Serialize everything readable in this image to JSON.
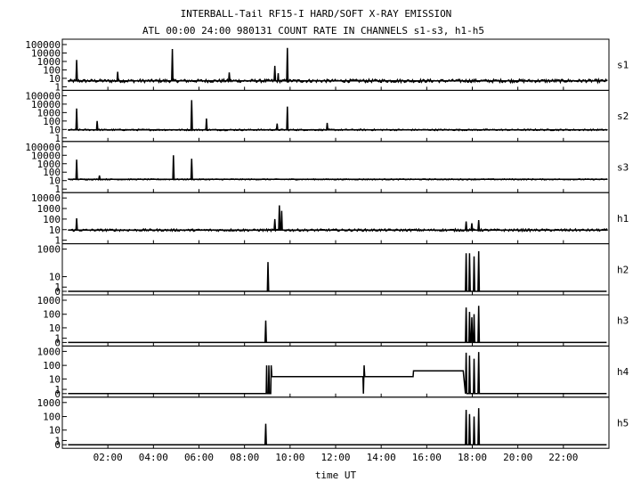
{
  "chart_data": {
    "type": "line",
    "title": "INTERBALL-Tail RF15-I HARD/SOFT X-RAY EMISSION",
    "subtitle": "ATL 00:00 24:00 980131  COUNT RATE IN CHANNELS s1-s3, h1-h5",
    "xlabel": "time UT",
    "x_unit": "hours",
    "xlim": [
      0,
      24
    ],
    "x_ticks": [
      {
        "value": 2,
        "label": "02:00"
      },
      {
        "value": 4,
        "label": "04:00"
      },
      {
        "value": 6,
        "label": "06:00"
      },
      {
        "value": 8,
        "label": "08:00"
      },
      {
        "value": 10,
        "label": "10:00"
      },
      {
        "value": 12,
        "label": "12:00"
      },
      {
        "value": 14,
        "label": "14:00"
      },
      {
        "value": 16,
        "label": "16:00"
      },
      {
        "value": 18,
        "label": "18:00"
      },
      {
        "value": 20,
        "label": "20:00"
      },
      {
        "value": 22,
        "label": "22:00"
      }
    ],
    "y_scale": "log",
    "grid": false,
    "panels": [
      {
        "name": "s1",
        "y_ticks": [
          {
            "value": 1,
            "label": "1"
          },
          {
            "value": 10,
            "label": "10"
          },
          {
            "value": 100,
            "label": "100"
          },
          {
            "value": 1000,
            "label": "1000"
          },
          {
            "value": 10000,
            "label": "10000"
          },
          {
            "value": 100000,
            "label": "100000"
          }
        ],
        "ylim": [
          1,
          100000
        ],
        "baseline": 5,
        "noise": 0.18,
        "series": [
          [
            0.25,
            5
          ],
          [
            0.6,
            5
          ],
          [
            0.63,
            1500
          ],
          [
            0.66,
            5
          ],
          [
            2.4,
            5
          ],
          [
            2.43,
            60
          ],
          [
            2.46,
            5
          ],
          [
            4.8,
            5
          ],
          [
            4.83,
            30000
          ],
          [
            4.86,
            5
          ],
          [
            7.3,
            5
          ],
          [
            7.33,
            50
          ],
          [
            7.36,
            5
          ],
          [
            9.3,
            5
          ],
          [
            9.33,
            300
          ],
          [
            9.36,
            5
          ],
          [
            9.45,
            5
          ],
          [
            9.48,
            40
          ],
          [
            9.5,
            5
          ],
          [
            9.85,
            5
          ],
          [
            9.88,
            40000
          ],
          [
            9.91,
            5
          ],
          [
            23.9,
            5
          ]
        ]
      },
      {
        "name": "s2",
        "y_ticks": [
          {
            "value": 1,
            "label": "1"
          },
          {
            "value": 10,
            "label": "10"
          },
          {
            "value": 100,
            "label": "100"
          },
          {
            "value": 1000,
            "label": "1000"
          },
          {
            "value": 10000,
            "label": "10000"
          },
          {
            "value": 100000,
            "label": "100000"
          }
        ],
        "ylim": [
          1,
          100000
        ],
        "baseline": 9,
        "noise": 0.08,
        "series": [
          [
            0.25,
            9
          ],
          [
            0.6,
            9
          ],
          [
            0.63,
            3000
          ],
          [
            0.66,
            9
          ],
          [
            1.5,
            9
          ],
          [
            1.53,
            100
          ],
          [
            1.56,
            9
          ],
          [
            5.65,
            9
          ],
          [
            5.68,
            30000
          ],
          [
            5.71,
            9
          ],
          [
            6.3,
            9
          ],
          [
            6.33,
            200
          ],
          [
            6.36,
            9
          ],
          [
            9.4,
            9
          ],
          [
            9.43,
            50
          ],
          [
            9.46,
            9
          ],
          [
            9.85,
            9
          ],
          [
            9.88,
            5000
          ],
          [
            9.91,
            9
          ],
          [
            11.6,
            9
          ],
          [
            11.63,
            60
          ],
          [
            11.66,
            9
          ],
          [
            23.9,
            9
          ]
        ]
      },
      {
        "name": "s3",
        "y_ticks": [
          {
            "value": 1,
            "label": "1"
          },
          {
            "value": 10,
            "label": "10"
          },
          {
            "value": 100,
            "label": "100"
          },
          {
            "value": 1000,
            "label": "1000"
          },
          {
            "value": 10000,
            "label": "10000"
          },
          {
            "value": 100000,
            "label": "100000"
          }
        ],
        "ylim": [
          1,
          100000
        ],
        "baseline": 14,
        "noise": 0.06,
        "series": [
          [
            0.25,
            14
          ],
          [
            0.6,
            14
          ],
          [
            0.63,
            3000
          ],
          [
            0.66,
            14
          ],
          [
            1.6,
            14
          ],
          [
            1.63,
            40
          ],
          [
            1.66,
            14
          ],
          [
            4.85,
            14
          ],
          [
            4.88,
            10000
          ],
          [
            4.91,
            14
          ],
          [
            5.65,
            14
          ],
          [
            5.68,
            4000
          ],
          [
            5.71,
            14
          ],
          [
            23.9,
            14
          ]
        ]
      },
      {
        "name": "h1",
        "y_ticks": [
          {
            "value": 1,
            "label": "1"
          },
          {
            "value": 10,
            "label": "10"
          },
          {
            "value": 100,
            "label": "100"
          },
          {
            "value": 1000,
            "label": "1000"
          },
          {
            "value": 10000,
            "label": "10000"
          }
        ],
        "ylim": [
          1,
          10000
        ],
        "baseline": 9,
        "noise": 0.1,
        "series": [
          [
            0.25,
            9
          ],
          [
            0.6,
            9
          ],
          [
            0.63,
            120
          ],
          [
            0.66,
            9
          ],
          [
            9.3,
            9
          ],
          [
            9.33,
            100
          ],
          [
            9.36,
            9
          ],
          [
            9.5,
            9
          ],
          [
            9.53,
            2000
          ],
          [
            9.56,
            9
          ],
          [
            9.6,
            9
          ],
          [
            9.63,
            600
          ],
          [
            9.66,
            9
          ],
          [
            17.7,
            9
          ],
          [
            17.73,
            60
          ],
          [
            17.76,
            9
          ],
          [
            17.95,
            9
          ],
          [
            17.98,
            40
          ],
          [
            18.01,
            9
          ],
          [
            18.25,
            9
          ],
          [
            18.28,
            80
          ],
          [
            18.31,
            9
          ],
          [
            23.9,
            9
          ]
        ]
      },
      {
        "name": "h2",
        "y_ticks": [
          {
            "value": 0,
            "label": "0"
          },
          {
            "value": 1,
            "label": "1"
          },
          {
            "value": 10,
            "label": "10"
          },
          {
            "value": 1000,
            "label": "1000"
          }
        ],
        "ylim": [
          0,
          1000
        ],
        "series": [
          [
            0.25,
            0
          ],
          [
            9.0,
            0
          ],
          [
            9.03,
            120
          ],
          [
            9.06,
            0
          ],
          [
            17.7,
            0
          ],
          [
            17.73,
            500
          ],
          [
            17.76,
            0
          ],
          [
            17.85,
            0
          ],
          [
            17.88,
            500
          ],
          [
            17.91,
            0
          ],
          [
            18.05,
            0
          ],
          [
            18.08,
            300
          ],
          [
            18.11,
            0
          ],
          [
            18.25,
            0
          ],
          [
            18.28,
            700
          ],
          [
            18.31,
            0
          ],
          [
            23.9,
            0
          ]
        ]
      },
      {
        "name": "h3",
        "y_ticks": [
          {
            "value": 0,
            "label": "0"
          },
          {
            "value": 1,
            "label": "1"
          },
          {
            "value": 10,
            "label": "10"
          },
          {
            "value": 100,
            "label": "100"
          },
          {
            "value": 1000,
            "label": "1000"
          }
        ],
        "ylim": [
          0,
          1000
        ],
        "series": [
          [
            0.25,
            0
          ],
          [
            8.9,
            0
          ],
          [
            8.93,
            35
          ],
          [
            8.96,
            0
          ],
          [
            17.7,
            0
          ],
          [
            17.73,
            300
          ],
          [
            17.76,
            0
          ],
          [
            17.85,
            0
          ],
          [
            17.88,
            150
          ],
          [
            17.91,
            0
          ],
          [
            17.95,
            0
          ],
          [
            17.98,
            60
          ],
          [
            18.01,
            0
          ],
          [
            18.05,
            0
          ],
          [
            18.08,
            100
          ],
          [
            18.11,
            0
          ],
          [
            18.25,
            0
          ],
          [
            18.28,
            400
          ],
          [
            18.31,
            0
          ],
          [
            23.9,
            0
          ]
        ]
      },
      {
        "name": "h4",
        "y_ticks": [
          {
            "value": 0,
            "label": "0"
          },
          {
            "value": 1,
            "label": "1"
          },
          {
            "value": 10,
            "label": "10"
          },
          {
            "value": 100,
            "label": "100"
          },
          {
            "value": 1000,
            "label": "1000"
          }
        ],
        "ylim": [
          0,
          1000
        ],
        "series": [
          [
            0.25,
            0
          ],
          [
            8.95,
            0
          ],
          [
            8.97,
            100
          ],
          [
            8.99,
            0
          ],
          [
            9.05,
            0
          ],
          [
            9.07,
            100
          ],
          [
            9.09,
            0
          ],
          [
            9.15,
            0
          ],
          [
            9.17,
            100
          ],
          [
            9.2,
            15
          ],
          [
            13.2,
            15
          ],
          [
            13.22,
            0
          ],
          [
            13.25,
            100
          ],
          [
            13.28,
            15
          ],
          [
            15.4,
            15
          ],
          [
            15.42,
            40
          ],
          [
            17.6,
            40
          ],
          [
            17.7,
            0
          ],
          [
            17.73,
            800
          ],
          [
            17.76,
            0
          ],
          [
            17.85,
            0
          ],
          [
            17.88,
            500
          ],
          [
            17.91,
            0
          ],
          [
            18.05,
            0
          ],
          [
            18.08,
            300
          ],
          [
            18.11,
            0
          ],
          [
            18.25,
            0
          ],
          [
            18.28,
            900
          ],
          [
            18.31,
            0
          ],
          [
            23.9,
            0
          ]
        ]
      },
      {
        "name": "h5",
        "y_ticks": [
          {
            "value": 0,
            "label": "0"
          },
          {
            "value": 1,
            "label": "1"
          },
          {
            "value": 10,
            "label": "10"
          },
          {
            "value": 100,
            "label": "100"
          },
          {
            "value": 1000,
            "label": "1000"
          }
        ],
        "ylim": [
          0,
          1000
        ],
        "series": [
          [
            0.25,
            0
          ],
          [
            8.9,
            0
          ],
          [
            8.93,
            30
          ],
          [
            8.96,
            0
          ],
          [
            17.7,
            0
          ],
          [
            17.73,
            300
          ],
          [
            17.76,
            0
          ],
          [
            17.85,
            0
          ],
          [
            17.88,
            150
          ],
          [
            17.91,
            0
          ],
          [
            18.05,
            0
          ],
          [
            18.08,
            100
          ],
          [
            18.11,
            0
          ],
          [
            18.25,
            0
          ],
          [
            18.28,
            400
          ],
          [
            18.31,
            0
          ],
          [
            23.9,
            0
          ]
        ]
      }
    ]
  }
}
